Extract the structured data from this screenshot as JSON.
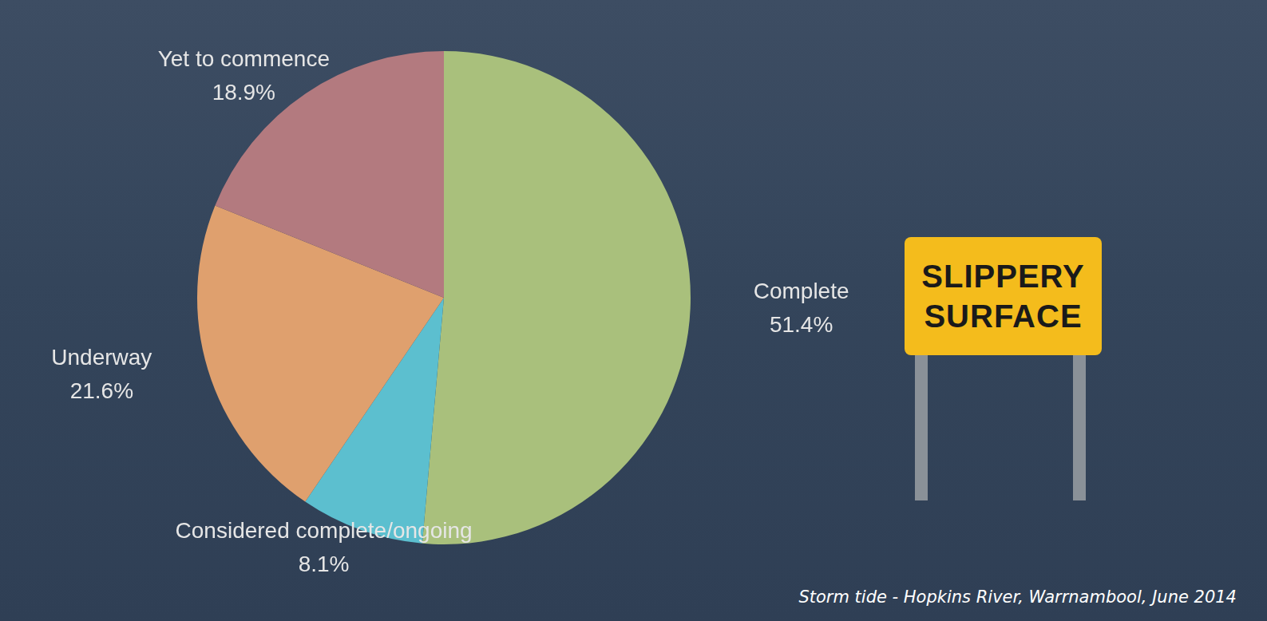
{
  "chart_data": {
    "type": "pie",
    "categories": [
      "Complete",
      "Considered complete/ongoing",
      "Underway",
      "Yet to commence"
    ],
    "values": [
      51.4,
      8.1,
      21.6,
      18.9
    ],
    "value_labels": [
      "51.4%",
      "8.1%",
      "21.6%",
      "18.9%"
    ],
    "colors": [
      "#a9c07c",
      "#5cbfcf",
      "#dfa06e",
      "#b37a7f"
    ],
    "data_labels": true,
    "legend": false,
    "annotations": [
      "SLIPPERY SURFACE",
      "Storm tide - Hopkins River, Warrnambool, June 2014"
    ]
  }
}
